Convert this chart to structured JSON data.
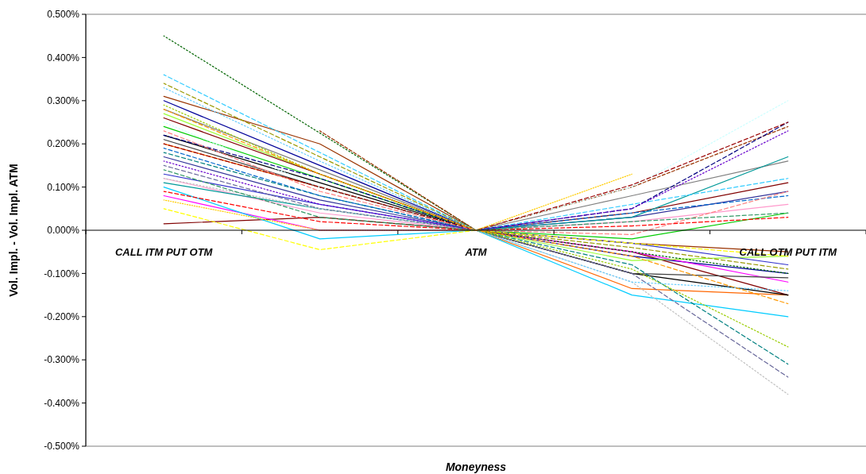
{
  "chart_data": {
    "type": "line",
    "xlabel": "Moneyness",
    "ylabel": "Vol. Impl. - Vol. Impl. ATM",
    "categories": [
      "CALL ITM PUT OTM",
      null,
      "ATM",
      null,
      "CALL OTM PUT ITM"
    ],
    "ylim": [
      -0.5,
      0.5
    ],
    "yticks": [
      {
        "value": -0.5,
        "label": "-0.500%"
      },
      {
        "value": -0.4,
        "label": "-0.400%"
      },
      {
        "value": -0.3,
        "label": "-0.300%"
      },
      {
        "value": -0.2,
        "label": "-0.200%"
      },
      {
        "value": -0.1,
        "label": "-0.100%"
      },
      {
        "value": 0,
        "label": "0.000%"
      },
      {
        "value": 0.1,
        "label": "0.100%"
      },
      {
        "value": 0.2,
        "label": "0.200%"
      },
      {
        "value": 0.3,
        "label": "0.300%"
      },
      {
        "value": 0.4,
        "label": "0.400%"
      },
      {
        "value": 0.5,
        "label": "0.500%"
      }
    ],
    "grid": false,
    "series": [
      {
        "color": "#006400",
        "line_style": "dotted",
        "values": [
          0.45,
          0.225,
          0,
          -0.05,
          -0.1
        ]
      },
      {
        "color": "#993300",
        "line_style": "solid",
        "values": [
          0.31,
          0.2,
          0,
          -0.03,
          -0.05
        ]
      },
      {
        "color": "#993300",
        "line_style": "dashed",
        "values": [
          null,
          0.23,
          0,
          0.1,
          0.24
        ]
      },
      {
        "color": "#33ccff",
        "line_style": "dashed",
        "values": [
          0.36,
          0.18,
          0,
          0.06,
          0.12
        ]
      },
      {
        "color": "#ffff00",
        "line_style": "dashed",
        "values": [
          0.05,
          -0.045,
          0,
          -0.03,
          -0.06
        ]
      },
      {
        "color": "#800000",
        "line_style": "solid",
        "values": [
          0.015,
          0.03,
          0,
          -0.05,
          -0.15
        ]
      },
      {
        "color": "#ff6600",
        "line_style": "solid",
        "values": [
          0.2,
          0.1,
          0,
          -0.135,
          -0.15
        ]
      },
      {
        "color": "#ccffff",
        "line_style": "dotted",
        "values": [
          0.25,
          0.1,
          0,
          0.1,
          0.3
        ]
      },
      {
        "color": "#000080",
        "line_style": "dashed",
        "values": [
          0.22,
          0.12,
          0,
          0.05,
          0.25
        ]
      },
      {
        "color": "#666699",
        "line_style": "dashed",
        "values": [
          0.15,
          0.05,
          0,
          -0.1,
          -0.34
        ]
      },
      {
        "color": "#c0c0c0",
        "line_style": "dotted",
        "values": [
          0.12,
          0.05,
          0,
          -0.12,
          -0.38
        ]
      },
      {
        "color": "#008080",
        "line_style": "dashed",
        "values": [
          0.18,
          0.08,
          0,
          -0.08,
          -0.31
        ]
      },
      {
        "color": "#99cc00",
        "line_style": "dotted",
        "values": [
          0.29,
          0.13,
          0,
          -0.09,
          -0.27
        ]
      },
      {
        "color": "#000099",
        "line_style": "solid",
        "values": [
          0.3,
          0.15,
          0,
          -0.06,
          -0.1
        ]
      },
      {
        "color": "#808080",
        "line_style": "solid",
        "values": [
          0.28,
          0.14,
          0,
          0.08,
          0.16
        ]
      },
      {
        "color": "#ff00ff",
        "line_style": "solid",
        "values": [
          0.08,
          0,
          0,
          -0.05,
          -0.12
        ]
      },
      {
        "color": "#ff0000",
        "line_style": "dashed",
        "values": [
          0.09,
          0.02,
          0,
          0.01,
          0.03
        ]
      },
      {
        "color": "#00cc00",
        "line_style": "solid",
        "values": [
          0.24,
          0.12,
          0,
          -0.02,
          0.04
        ]
      },
      {
        "color": "#0066cc",
        "line_style": "dashed",
        "values": [
          0.19,
          0.08,
          0,
          0.04,
          0.08
        ]
      },
      {
        "color": "#ff99cc",
        "line_style": "solid",
        "values": [
          0.12,
          0.04,
          0,
          0.02,
          0.06
        ]
      },
      {
        "color": "#6600cc",
        "line_style": "dotted",
        "values": [
          0.16,
          0.06,
          0,
          0.05,
          0.23
        ]
      },
      {
        "color": "#990000",
        "line_style": "dashed",
        "values": [
          0.2,
          0.1,
          0,
          0.105,
          0.25
        ]
      },
      {
        "color": "#00ccff",
        "line_style": "solid",
        "values": [
          0.1,
          -0.02,
          0,
          -0.15,
          -0.2
        ]
      },
      {
        "color": "#000000",
        "line_style": "solid",
        "values": [
          0.22,
          0.11,
          0,
          -0.1,
          -0.15
        ]
      },
      {
        "color": "#999900",
        "line_style": "dashed",
        "values": [
          0.34,
          0.17,
          0,
          -0.04,
          -0.09
        ]
      },
      {
        "color": "#66ccff",
        "line_style": "dotted",
        "values": [
          0.33,
          0.16,
          0,
          -0.12,
          -0.14
        ]
      },
      {
        "color": "#99ff33",
        "line_style": "solid",
        "values": [
          0.27,
          0.13,
          0,
          -0.07,
          -0.06
        ]
      },
      {
        "color": "#333399",
        "line_style": "solid",
        "values": [
          0.17,
          0.07,
          0,
          0.03,
          0.09
        ]
      },
      {
        "color": "#ff8080",
        "line_style": "dashed",
        "values": [
          0.23,
          0.09,
          0,
          -0.01,
          0.09
        ]
      },
      {
        "color": "#404040",
        "line_style": "solid",
        "values": [
          0.21,
          0.1,
          0,
          -0.1,
          -0.11
        ]
      },
      {
        "color": "#ffcc00",
        "line_style": "dotted",
        "values": [
          0.07,
          0,
          0,
          0.13,
          null
        ]
      },
      {
        "color": "#339966",
        "line_style": "dashed",
        "values": [
          0.14,
          0.03,
          0,
          0.02,
          0.04
        ]
      },
      {
        "color": "#800000",
        "line_style": "solid",
        "values": [
          0.26,
          0.13,
          0,
          0.04,
          0.11
        ]
      },
      {
        "color": "#009999",
        "line_style": "solid",
        "values": [
          0.11,
          0.05,
          0,
          0.03,
          0.17
        ]
      },
      {
        "color": "#ff9900",
        "line_style": "dashed",
        "values": [
          0.28,
          0.13,
          0,
          -0.06,
          -0.17
        ]
      },
      {
        "color": "#3333cc",
        "line_style": "solid",
        "values": [
          0.13,
          0.06,
          0,
          -0.03,
          -0.08
        ]
      }
    ]
  }
}
